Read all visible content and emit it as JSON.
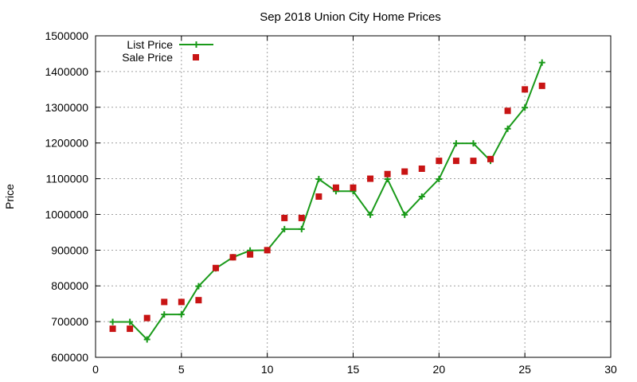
{
  "chart_data": {
    "type": "line",
    "title": "Sep 2018 Union City Home Prices",
    "xlabel": "",
    "ylabel": "Price",
    "xlim": [
      0,
      30
    ],
    "ylim": [
      600000,
      1500000
    ],
    "x_ticks": [
      "0",
      "5",
      "10",
      "15",
      "20",
      "25",
      "30"
    ],
    "y_ticks": [
      "600000",
      "700000",
      "800000",
      "900000",
      "1000000",
      "1100000",
      "1200000",
      "1300000",
      "1400000",
      "1500000"
    ],
    "grid": true,
    "legend_position": "top-left",
    "series": [
      {
        "name": "List Price",
        "kind": "line",
        "marker": "plus",
        "color": "#1a9a1a",
        "x": [
          1,
          2,
          3,
          4,
          5,
          6,
          7,
          8,
          9,
          10,
          11,
          12,
          13,
          14,
          15,
          16,
          17,
          18,
          19,
          20,
          21,
          22,
          23,
          24,
          25,
          26
        ],
        "y": [
          699000,
          699000,
          650000,
          720000,
          720000,
          799000,
          849000,
          880000,
          899000,
          900000,
          959000,
          959000,
          1099000,
          1065000,
          1065000,
          999000,
          1099000,
          999000,
          1050000,
          1099000,
          1199000,
          1199000,
          1150000,
          1240000,
          1299000,
          1425000
        ]
      },
      {
        "name": "Sale Price",
        "kind": "scatter",
        "marker": "square",
        "color": "#c81414",
        "x": [
          1,
          2,
          3,
          4,
          5,
          6,
          7,
          8,
          9,
          10,
          11,
          12,
          13,
          14,
          15,
          16,
          17,
          18,
          19,
          20,
          21,
          22,
          23,
          24,
          25,
          26
        ],
        "y": [
          680000,
          680000,
          710000,
          755000,
          755000,
          760000,
          850000,
          880000,
          888000,
          900000,
          990000,
          990000,
          1050000,
          1075000,
          1075000,
          1100000,
          1113000,
          1120000,
          1128000,
          1150000,
          1150000,
          1150000,
          1155000,
          1290000,
          1350000,
          1360000
        ]
      }
    ]
  }
}
